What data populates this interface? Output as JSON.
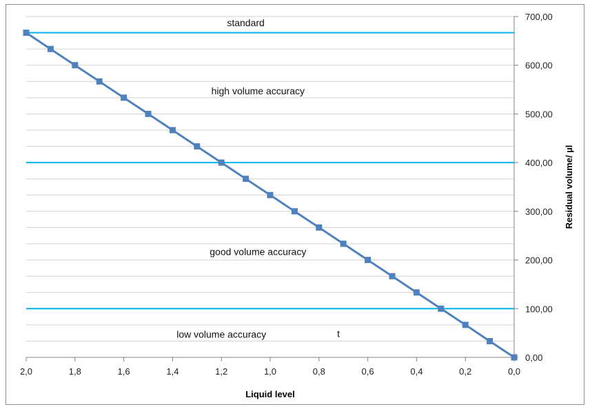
{
  "chart_data": {
    "type": "line",
    "xlabel": "Liquid level",
    "ylabel": "Residual volume/ µl",
    "x_axis_reversed": true,
    "xlim": [
      0,
      2
    ],
    "ylim": [
      0,
      700
    ],
    "x_ticks": [
      2.0,
      1.8,
      1.6,
      1.4,
      1.2,
      1.0,
      0.8,
      0.6,
      0.4,
      0.2,
      0.0
    ],
    "x_tick_labels": [
      "2,0",
      "1,8",
      "1,6",
      "1,4",
      "1,2",
      "1,0",
      "0,8",
      "0,6",
      "0,4",
      "0,2",
      "0,0"
    ],
    "y_ticks": [
      0,
      100,
      200,
      300,
      400,
      500,
      600,
      700
    ],
    "y_tick_labels": [
      "0,00",
      "100,00",
      "200,00",
      "300,00",
      "400,00",
      "500,00",
      "600,00",
      "700,00"
    ],
    "y_axis_side": "right",
    "grid": true,
    "series": [
      {
        "x": [
          2.0,
          1.9,
          1.8,
          1.7,
          1.6,
          1.5,
          1.4,
          1.3,
          1.2,
          1.1,
          1.0,
          0.9,
          0.8,
          0.7,
          0.6,
          0.5,
          0.4,
          0.3,
          0.2,
          0.1,
          0.0
        ],
        "values": [
          666.7,
          633.3,
          600.0,
          566.7,
          533.3,
          500.0,
          466.7,
          433.3,
          400.0,
          366.7,
          333.3,
          300.0,
          266.7,
          233.3,
          200.0,
          166.7,
          133.3,
          100.0,
          66.7,
          33.3,
          0.0
        ],
        "color": "#4f81bd"
      }
    ],
    "reference_lines": [
      {
        "y": 666.7,
        "color": "#00b0f0"
      },
      {
        "y": 400,
        "color": "#00b0f0"
      },
      {
        "y": 100,
        "color": "#00b0f0"
      }
    ],
    "annotations": [
      {
        "text": "standard",
        "x": 1.1,
        "y": 680
      },
      {
        "text": "high volume accuracy",
        "x": 1.05,
        "y": 540
      },
      {
        "text": "good volume accuracy",
        "x": 1.05,
        "y": 210
      },
      {
        "text": "low volume accuracy",
        "x": 1.2,
        "y": 40
      },
      {
        "text": "t",
        "x": 0.72,
        "y": 42
      }
    ]
  }
}
